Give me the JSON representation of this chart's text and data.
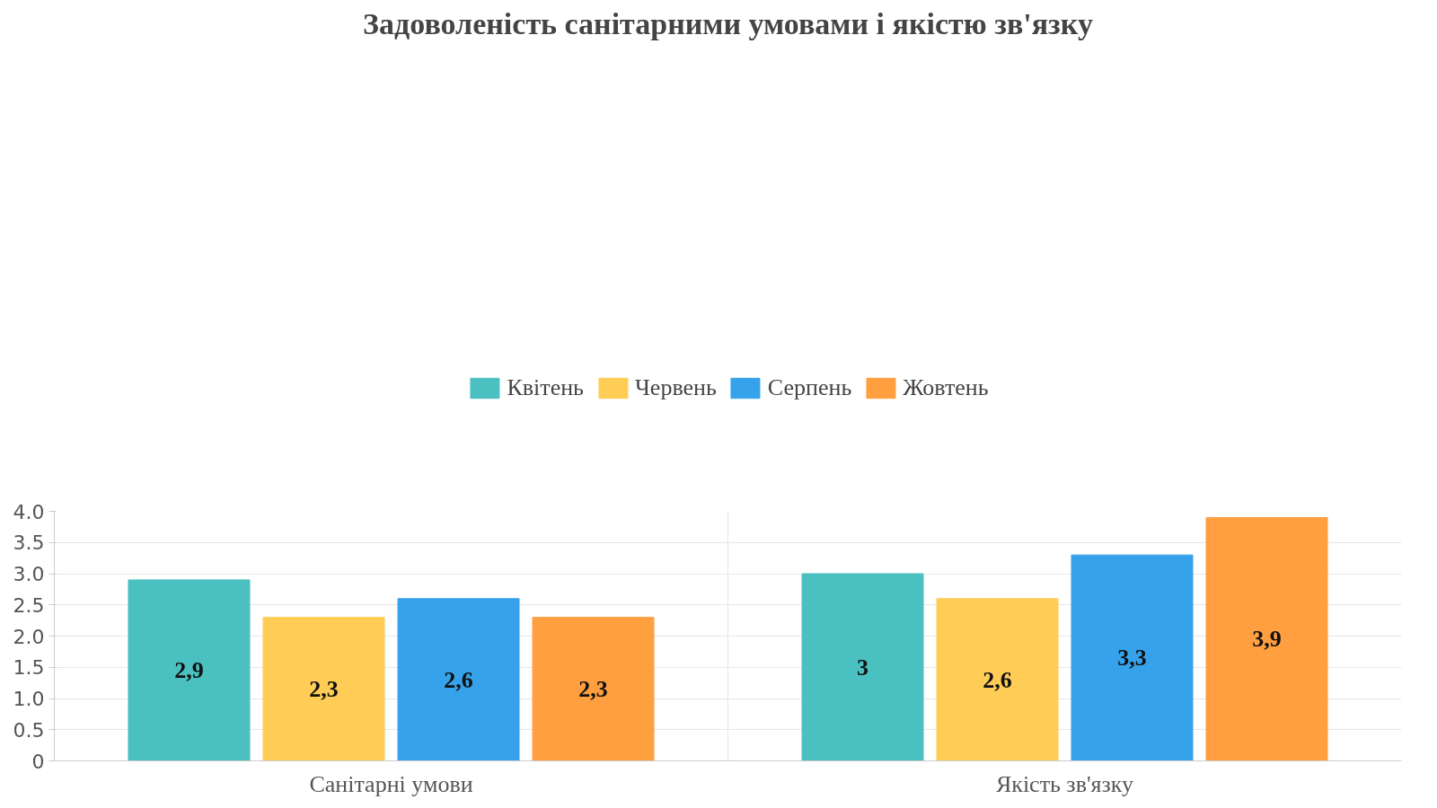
{
  "chart_data": {
    "type": "bar",
    "title": "Задоволеність санітарними умовами і якістю зв'язку",
    "categories": [
      "Санітарні умови",
      "Якість зв'язку"
    ],
    "series": [
      {
        "name": "Квітень",
        "color": "#4bc0c0",
        "values": [
          2.9,
          3.0
        ],
        "value_labels": [
          "2,9",
          "3"
        ]
      },
      {
        "name": "Червень",
        "color": "#ffcd56",
        "values": [
          2.3,
          2.6
        ],
        "value_labels": [
          "2,3",
          "2,6"
        ]
      },
      {
        "name": "Серпень",
        "color": "#36a2eb",
        "values": [
          2.6,
          3.3
        ],
        "value_labels": [
          "2,6",
          "3,3"
        ]
      },
      {
        "name": "Жовтень",
        "color": "#ff9f40",
        "values": [
          2.3,
          3.9
        ],
        "value_labels": [
          "2,3",
          "3,9"
        ]
      }
    ],
    "ylim": [
      0,
      4
    ],
    "yticks": [
      0,
      {
        "value": 0.5,
        "label": "0.5"
      },
      {
        "value": 1,
        "label": "1.0"
      },
      1.5,
      {
        "value": 2,
        "label": "2.0"
      },
      2.5,
      {
        "value": 3,
        "label": "3.0"
      },
      3.5,
      {
        "value": 4,
        "label": "4.0"
      }
    ],
    "grid": true,
    "legend": "top"
  }
}
